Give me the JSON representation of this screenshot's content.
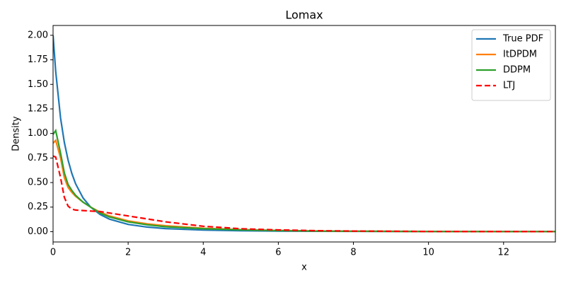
{
  "chart_data": {
    "type": "line",
    "title": "Lomax",
    "x_label": "x",
    "y_label": "Density",
    "x": [
      0,
      0.07,
      0.2,
      0.3,
      0.4,
      0.5,
      0.6,
      0.8,
      1,
      1.25,
      1.5,
      2,
      2.5,
      3,
      4,
      5,
      6,
      7,
      8,
      10,
      12,
      13.38
    ],
    "series": [
      {
        "name": "True PDF",
        "color": "#1f77b4",
        "dash": false,
        "values": [
          2.0,
          1.633,
          1.157,
          0.91,
          0.729,
          0.593,
          0.488,
          0.343,
          0.25,
          0.176,
          0.128,
          0.074,
          0.047,
          0.031,
          0.016,
          0.009,
          0.006,
          0.004,
          0.003,
          0.0015,
          0.0009,
          0.0007
        ]
      },
      {
        "name": "ItDPDM",
        "color": "#ff7f0e",
        "dash": false,
        "values": [
          0.9,
          0.93,
          0.75,
          0.55,
          0.45,
          0.4,
          0.36,
          0.3,
          0.25,
          0.2,
          0.16,
          0.11,
          0.08,
          0.06,
          0.035,
          0.02,
          0.012,
          0.007,
          0.004,
          0.002,
          0.001,
          0.001
        ]
      },
      {
        "name": "DDPM",
        "color": "#2ca02c",
        "dash": false,
        "values": [
          0.99,
          1.03,
          0.8,
          0.6,
          0.48,
          0.42,
          0.37,
          0.3,
          0.25,
          0.19,
          0.15,
          0.1,
          0.07,
          0.05,
          0.03,
          0.018,
          0.011,
          0.006,
          0.004,
          0.002,
          0.001,
          0.001
        ]
      },
      {
        "name": "LTJ",
        "color": "#ff0000",
        "dash": true,
        "values": [
          0.77,
          0.76,
          0.55,
          0.35,
          0.26,
          0.23,
          0.22,
          0.215,
          0.21,
          0.205,
          0.19,
          0.16,
          0.13,
          0.1,
          0.055,
          0.03,
          0.018,
          0.01,
          0.006,
          0.002,
          0.001,
          0.001
        ]
      }
    ],
    "xlim": [
      0,
      13.38
    ],
    "ylim": [
      -0.105,
      2.1
    ],
    "xticks": [
      0,
      2,
      4,
      6,
      8,
      10,
      12
    ],
    "yticks": [
      {
        "value": 0,
        "label": "0.00"
      },
      {
        "value": 0.25,
        "label": "0.25"
      },
      {
        "value": 0.5,
        "label": "0.50"
      },
      {
        "value": 0.75,
        "label": "0.75"
      },
      {
        "value": 1,
        "label": "1.00"
      },
      {
        "value": 1.25,
        "label": "1.25"
      },
      {
        "value": 1.5,
        "label": "1.50"
      },
      {
        "value": 1.75,
        "label": "1.75"
      },
      {
        "value": 2,
        "label": "2.00"
      }
    ],
    "legend": "upper right",
    "grid": false
  }
}
